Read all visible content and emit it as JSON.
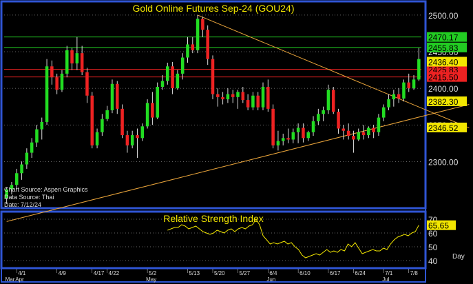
{
  "colors": {
    "background": "#000000",
    "frame": "#2f55d4",
    "bull": "#22dd22",
    "bear": "#ee2222",
    "wick": "#dddddd",
    "trendline": "#e8a33a",
    "title": "#f2e600",
    "grid": "#cfcfcf",
    "support_line": "#22cc22",
    "resistance_line": "#ee2222",
    "rsi_line": "#f2e600",
    "axis_text": "#dddddd"
  },
  "chart_data": [
    {
      "type": "candlestick",
      "title": "Gold Online Futures Sep-24 (GOU24)",
      "info": [
        "Chart Source: Aspen Graphics",
        "Data Source: Thai",
        "Date: 7/12/24"
      ],
      "ylim": [
        2240,
        2515
      ],
      "y_ticks": [
        2300,
        2350,
        2400,
        2450,
        2500
      ],
      "y_tick_labels": [
        "2300.00",
        "2350.00",
        "2400.00",
        "2450.00",
        "2500.00"
      ],
      "x_tick_labels": [
        "4/1",
        "4/9",
        "4/17",
        "4/22",
        "5/2",
        "5/13",
        "5/20",
        "5/27",
        "6/4",
        "6/10",
        "6/17",
        "6/24",
        "7/1",
        "7/8"
      ],
      "month_labels": [
        "Mar",
        "Apr",
        "May",
        "Jun",
        "Jul"
      ],
      "x_axis_name": "Day",
      "candles": [
        {
          "o": 2250,
          "h": 2265,
          "l": 2242,
          "c": 2262
        },
        {
          "o": 2262,
          "h": 2272,
          "l": 2255,
          "c": 2268
        },
        {
          "o": 2268,
          "h": 2290,
          "l": 2262,
          "c": 2284
        },
        {
          "o": 2284,
          "h": 2300,
          "l": 2275,
          "c": 2296
        },
        {
          "o": 2296,
          "h": 2318,
          "l": 2290,
          "c": 2312
        },
        {
          "o": 2312,
          "h": 2332,
          "l": 2305,
          "c": 2326
        },
        {
          "o": 2326,
          "h": 2350,
          "l": 2320,
          "c": 2344
        },
        {
          "o": 2344,
          "h": 2360,
          "l": 2330,
          "c": 2354
        },
        {
          "o": 2354,
          "h": 2440,
          "l": 2350,
          "c": 2430
        },
        {
          "o": 2430,
          "h": 2438,
          "l": 2405,
          "c": 2415
        },
        {
          "o": 2415,
          "h": 2420,
          "l": 2392,
          "c": 2398
        },
        {
          "o": 2398,
          "h": 2425,
          "l": 2395,
          "c": 2420
        },
        {
          "o": 2420,
          "h": 2458,
          "l": 2415,
          "c": 2452
        },
        {
          "o": 2452,
          "h": 2455,
          "l": 2425,
          "c": 2434
        },
        {
          "o": 2434,
          "h": 2470,
          "l": 2425,
          "c": 2448
        },
        {
          "o": 2448,
          "h": 2458,
          "l": 2418,
          "c": 2422
        },
        {
          "o": 2422,
          "h": 2428,
          "l": 2380,
          "c": 2390
        },
        {
          "o": 2390,
          "h": 2395,
          "l": 2318,
          "c": 2322
        },
        {
          "o": 2322,
          "h": 2345,
          "l": 2318,
          "c": 2340
        },
        {
          "o": 2340,
          "h": 2365,
          "l": 2335,
          "c": 2358
        },
        {
          "o": 2358,
          "h": 2376,
          "l": 2355,
          "c": 2370
        },
        {
          "o": 2370,
          "h": 2412,
          "l": 2366,
          "c": 2406
        },
        {
          "o": 2406,
          "h": 2410,
          "l": 2365,
          "c": 2372
        },
        {
          "o": 2372,
          "h": 2378,
          "l": 2332,
          "c": 2336
        },
        {
          "o": 2336,
          "h": 2342,
          "l": 2312,
          "c": 2322
        },
        {
          "o": 2322,
          "h": 2342,
          "l": 2318,
          "c": 2336
        },
        {
          "o": 2336,
          "h": 2345,
          "l": 2305,
          "c": 2332
        },
        {
          "o": 2332,
          "h": 2352,
          "l": 2328,
          "c": 2348
        },
        {
          "o": 2348,
          "h": 2385,
          "l": 2345,
          "c": 2380
        },
        {
          "o": 2380,
          "h": 2395,
          "l": 2350,
          "c": 2360
        },
        {
          "o": 2360,
          "h": 2408,
          "l": 2358,
          "c": 2402
        },
        {
          "o": 2402,
          "h": 2418,
          "l": 2398,
          "c": 2410
        },
        {
          "o": 2410,
          "h": 2435,
          "l": 2405,
          "c": 2430
        },
        {
          "o": 2430,
          "h": 2436,
          "l": 2392,
          "c": 2400
        },
        {
          "o": 2400,
          "h": 2425,
          "l": 2398,
          "c": 2420
        },
        {
          "o": 2420,
          "h": 2448,
          "l": 2412,
          "c": 2442
        },
        {
          "o": 2442,
          "h": 2470,
          "l": 2435,
          "c": 2460
        },
        {
          "o": 2460,
          "h": 2470,
          "l": 2448,
          "c": 2452
        },
        {
          "o": 2452,
          "h": 2500,
          "l": 2448,
          "c": 2495
        },
        {
          "o": 2495,
          "h": 2498,
          "l": 2470,
          "c": 2480
        },
        {
          "o": 2480,
          "h": 2486,
          "l": 2432,
          "c": 2440
        },
        {
          "o": 2440,
          "h": 2445,
          "l": 2385,
          "c": 2392
        },
        {
          "o": 2392,
          "h": 2400,
          "l": 2375,
          "c": 2388
        },
        {
          "o": 2388,
          "h": 2395,
          "l": 2378,
          "c": 2385
        },
        {
          "o": 2385,
          "h": 2400,
          "l": 2380,
          "c": 2392
        },
        {
          "o": 2392,
          "h": 2398,
          "l": 2380,
          "c": 2388
        },
        {
          "o": 2388,
          "h": 2398,
          "l": 2372,
          "c": 2395
        },
        {
          "o": 2395,
          "h": 2402,
          "l": 2380,
          "c": 2384
        },
        {
          "o": 2384,
          "h": 2392,
          "l": 2370,
          "c": 2374
        },
        {
          "o": 2374,
          "h": 2395,
          "l": 2370,
          "c": 2390
        },
        {
          "o": 2390,
          "h": 2395,
          "l": 2370,
          "c": 2374
        },
        {
          "o": 2374,
          "h": 2408,
          "l": 2370,
          "c": 2402
        },
        {
          "o": 2402,
          "h": 2412,
          "l": 2368,
          "c": 2372
        },
        {
          "o": 2372,
          "h": 2378,
          "l": 2318,
          "c": 2322
        },
        {
          "o": 2322,
          "h": 2342,
          "l": 2315,
          "c": 2328
        },
        {
          "o": 2328,
          "h": 2338,
          "l": 2322,
          "c": 2332
        },
        {
          "o": 2332,
          "h": 2345,
          "l": 2325,
          "c": 2330
        },
        {
          "o": 2330,
          "h": 2345,
          "l": 2325,
          "c": 2340
        },
        {
          "o": 2340,
          "h": 2352,
          "l": 2325,
          "c": 2346
        },
        {
          "o": 2346,
          "h": 2352,
          "l": 2326,
          "c": 2332
        },
        {
          "o": 2332,
          "h": 2342,
          "l": 2328,
          "c": 2340
        },
        {
          "o": 2340,
          "h": 2362,
          "l": 2335,
          "c": 2355
        },
        {
          "o": 2355,
          "h": 2372,
          "l": 2350,
          "c": 2365
        },
        {
          "o": 2365,
          "h": 2375,
          "l": 2355,
          "c": 2370
        },
        {
          "o": 2370,
          "h": 2405,
          "l": 2365,
          "c": 2398
        },
        {
          "o": 2398,
          "h": 2402,
          "l": 2365,
          "c": 2368
        },
        {
          "o": 2368,
          "h": 2372,
          "l": 2338,
          "c": 2345
        },
        {
          "o": 2345,
          "h": 2350,
          "l": 2330,
          "c": 2342
        },
        {
          "o": 2342,
          "h": 2352,
          "l": 2330,
          "c": 2335
        },
        {
          "o": 2335,
          "h": 2342,
          "l": 2312,
          "c": 2330
        },
        {
          "o": 2330,
          "h": 2345,
          "l": 2328,
          "c": 2340
        },
        {
          "o": 2340,
          "h": 2350,
          "l": 2330,
          "c": 2336
        },
        {
          "o": 2336,
          "h": 2348,
          "l": 2332,
          "c": 2346
        },
        {
          "o": 2346,
          "h": 2350,
          "l": 2332,
          "c": 2340
        },
        {
          "o": 2340,
          "h": 2365,
          "l": 2335,
          "c": 2360
        },
        {
          "o": 2360,
          "h": 2378,
          "l": 2355,
          "c": 2374
        },
        {
          "o": 2374,
          "h": 2392,
          "l": 2370,
          "c": 2385
        },
        {
          "o": 2385,
          "h": 2398,
          "l": 2375,
          "c": 2392
        },
        {
          "o": 2392,
          "h": 2400,
          "l": 2380,
          "c": 2386
        },
        {
          "o": 2386,
          "h": 2412,
          "l": 2382,
          "c": 2408
        },
        {
          "o": 2408,
          "h": 2420,
          "l": 2395,
          "c": 2400
        },
        {
          "o": 2400,
          "h": 2418,
          "l": 2398,
          "c": 2412
        },
        {
          "o": 2412,
          "h": 2455,
          "l": 2410,
          "c": 2440
        }
      ],
      "horizontal_lines": [
        {
          "value": 2470.17,
          "label": "2470.17",
          "kind": "support"
        },
        {
          "value": 2455.83,
          "label": "2455.83",
          "kind": "support"
        },
        {
          "value": 2425.83,
          "label": "2425.83",
          "kind": "resistance"
        },
        {
          "value": 2415.5,
          "label": "2415.50",
          "kind": "resistance"
        }
      ],
      "price_labels": [
        {
          "value": 2436.4,
          "label": "2436.40"
        },
        {
          "value": 2382.3,
          "label": "2382.30"
        },
        {
          "value": 2346.52,
          "label": "2346.52"
        }
      ],
      "trendlines": [
        {
          "from": [
            0,
            2218
          ],
          "to": [
            92,
            2378
          ]
        },
        {
          "from": [
            38,
            2500
          ],
          "to": [
            92,
            2346
          ]
        }
      ]
    },
    {
      "type": "line",
      "title": "Relative Strength Index",
      "ylim": [
        36,
        73
      ],
      "y_ticks": [
        40,
        50,
        60,
        70
      ],
      "current_value": 65.65,
      "current_label": "65.65",
      "values": [
        62,
        63,
        64,
        64,
        66,
        65,
        63,
        64,
        65,
        63,
        61,
        60,
        59,
        60,
        62,
        61,
        60,
        62,
        63,
        61,
        63,
        64,
        63,
        65,
        66,
        70,
        66,
        58,
        55,
        52,
        53,
        52,
        53,
        54,
        52,
        53,
        50,
        48,
        44,
        42,
        43,
        44,
        45,
        44,
        46,
        48,
        46,
        47,
        46,
        48,
        47,
        52,
        50,
        53,
        49,
        45,
        46,
        47,
        48,
        47,
        47,
        49,
        48,
        52,
        55,
        57,
        58,
        59,
        58,
        60,
        61,
        65.65
      ]
    }
  ]
}
